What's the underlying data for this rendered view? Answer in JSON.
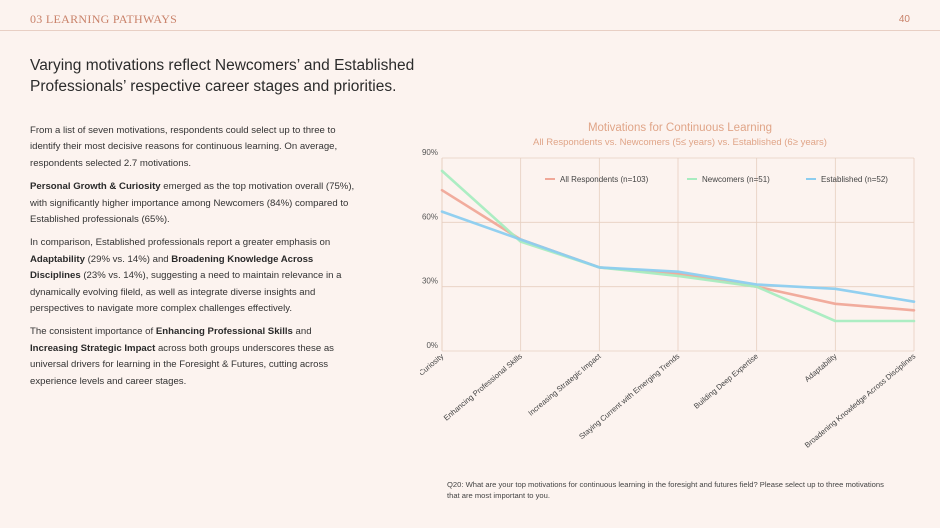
{
  "header": {
    "section": "03 LEARNING PATHWAYS",
    "page_number": "40"
  },
  "headline": "Varying motivations reflect Newcomers’ and Established Professionals’ respective career stages and priorities.",
  "body": {
    "p1": "From a list of seven motivations, respondents could select up to three to identify their most decisive reasons for continuous learning. On average, respondents selected 2.7 motivations.",
    "p2_bold": "Personal Growth & Curiosity",
    "p2_rest": " emerged as the top motivation overall (75%), with significantly higher importance among Newcomers (84%) compared to Established professionals (65%).",
    "p3_a": "In comparison, Established professionals report a greater emphasis on ",
    "p3_b1": "Adaptability",
    "p3_c": " (29% vs. 14%) and ",
    "p3_b2": "Broadening Knowledge Across Disciplines",
    "p3_d": " (23% vs. 14%), suggesting a need to maintain relevance in a dynamically evolving fileld, as well as integrate diverse insights and perspectives to navigate more complex challenges effectively.",
    "p4_a": "The consistent importance of ",
    "p4_b1": "Enhancing Professional Skills",
    "p4_c": " and ",
    "p4_b2": "Increasing Strategic Impact",
    "p4_d": " across both groups underscores these as universal drivers for learning in the Foresight & Futures, cutting across experience levels and career stages."
  },
  "chart_data": {
    "type": "line",
    "title": "Motivations for Continuous Learning",
    "subtitle": "All Respondents vs. Newcomers (5≤ years) vs. Established (6≥ years)",
    "categories": [
      "Personal Growth & Curiosity",
      "Enhancing Professional Skills",
      "Increasing Strategic Impact",
      "Staying Current with Emerging Trends",
      "Building Deep Expertise",
      "Adaptability",
      "Broadening Knowledge Across Disciplines"
    ],
    "y_ticks": [
      "0%",
      "30%",
      "60%",
      "90%"
    ],
    "ylim": [
      0,
      90
    ],
    "grid": true,
    "legend_position": "top-right",
    "series": [
      {
        "name": "All Respondents (n=103)",
        "color": "#f0a898",
        "values": [
          75,
          52,
          39,
          36,
          30,
          22,
          19
        ]
      },
      {
        "name": "Newcomers (n=51)",
        "color": "#a8ecc0",
        "values": [
          84,
          51,
          39,
          35,
          30,
          14,
          14
        ]
      },
      {
        "name": "Established (n=52)",
        "color": "#8ccdef",
        "values": [
          65,
          52,
          39,
          37,
          31,
          29,
          23
        ]
      }
    ]
  },
  "footnote": "Q20: What are your top motivations for continuous learning in the foresight and futures field? Please select up to three motivations that are most important to you."
}
